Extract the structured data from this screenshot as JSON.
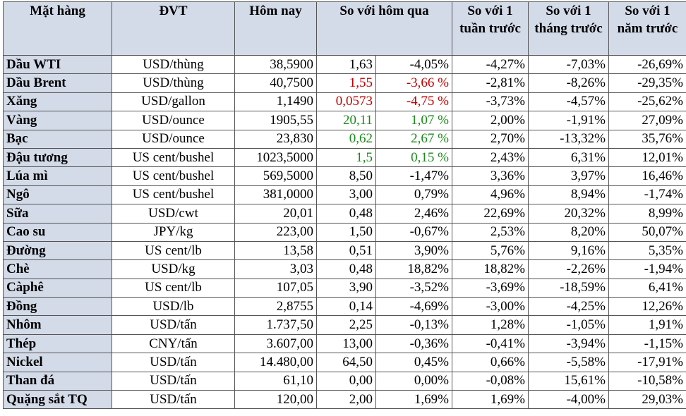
{
  "colors": {
    "header_bg": "#d3dae8",
    "up": "#1a8a1a",
    "down": "#c00000"
  },
  "headers": {
    "item": "Mặt hàng",
    "unit": "ĐVT",
    "today": "Hôm nay",
    "vs_yesterday": "So với hôm qua",
    "vs_week": "So với 1 tuần trước",
    "vs_month": "So với 1 tháng trước",
    "vs_year": "So với 1 năm trước"
  },
  "rows": [
    {
      "name": "Dầu WTI",
      "unit": "USD/thùng",
      "today": "38,5900",
      "chg": "1,63",
      "pct": "-4,05%",
      "week": "-4,27%",
      "month": "-7,03%",
      "year": "-26,69%",
      "color": ""
    },
    {
      "name": "Dầu Brent",
      "unit": "USD/thùng",
      "today": "40,7500",
      "chg": "1,55",
      "pct": "-3,66 %",
      "week": "-2,81%",
      "month": "-8,26%",
      "year": "-29,35%",
      "color": "red"
    },
    {
      "name": "Xăng",
      "unit": "USD/gallon",
      "today": "1,1490",
      "chg": "0,0573",
      "pct": "-4,75 %",
      "week": "-3,73%",
      "month": "-4,57%",
      "year": "-25,62%",
      "color": "red"
    },
    {
      "name": "Vàng",
      "unit": "USD/ounce",
      "today": "1905,55",
      "chg": "20,11",
      "pct": "1,07 %",
      "week": "2,00%",
      "month": "-1,91%",
      "year": "27,09%",
      "color": "green"
    },
    {
      "name": "Bạc",
      "unit": "USD/ounce",
      "today": "23,830",
      "chg": "0,62",
      "pct": "2,67 %",
      "week": "2,70%",
      "month": "-13,32%",
      "year": "35,76%",
      "color": "green"
    },
    {
      "name": "Đậu tương",
      "unit": "US cent/bushel",
      "today": "1023,5000",
      "chg": "1,5",
      "pct": "0,15 %",
      "week": "2,43%",
      "month": "6,31%",
      "year": "12,01%",
      "color": "green"
    },
    {
      "name": "Lúa mì",
      "unit": "US cent/bushel",
      "today": "569,5000",
      "chg": "8,50",
      "pct": "-1,47%",
      "week": "3,36%",
      "month": "3,97%",
      "year": "16,46%",
      "color": ""
    },
    {
      "name": "Ngô",
      "unit": "US cent/bushel",
      "today": "381,0000",
      "chg": "3,00",
      "pct": "0,79%",
      "week": "4,96%",
      "month": "8,94%",
      "year": "-1,74%",
      "color": ""
    },
    {
      "name": "Sữa",
      "unit": "USD/cwt",
      "today": "20,01",
      "chg": "0,48",
      "pct": "2,46%",
      "week": "22,69%",
      "month": "20,32%",
      "year": "8,99%",
      "color": ""
    },
    {
      "name": "Cao su",
      "unit": "JPY/kg",
      "today": "223,00",
      "chg": "1,50",
      "pct": "-0,67%",
      "week": "2,53%",
      "month": "8,20%",
      "year": "50,07%",
      "color": ""
    },
    {
      "name": "Đường",
      "unit": "US cent/lb",
      "today": "13,58",
      "chg": "0,51",
      "pct": "3,90%",
      "week": "5,76%",
      "month": "9,16%",
      "year": "5,35%",
      "color": ""
    },
    {
      "name": "Chè",
      "unit": "USD/kg",
      "today": "3,03",
      "chg": "0,48",
      "pct": "18,82%",
      "week": "18,82%",
      "month": "-2,26%",
      "year": "-1,94%",
      "color": ""
    },
    {
      "name": "Càphê",
      "unit": "US cent/lb",
      "today": "107,05",
      "chg": "3,90",
      "pct": "-3,52%",
      "week": "-3,69%",
      "month": "-18,59%",
      "year": "6,41%",
      "color": ""
    },
    {
      "name": "Đồng",
      "unit": "USD/lb",
      "today": "2,8755",
      "chg": "0,14",
      "pct": "-4,69%",
      "week": "-3,00%",
      "month": "-4,25%",
      "year": "12,26%",
      "color": ""
    },
    {
      "name": "Nhôm",
      "unit": "USD/tấn",
      "today": "1.737,50",
      "chg": "2,25",
      "pct": "-0,13%",
      "week": "1,28%",
      "month": "-1,05%",
      "year": "1,91%",
      "color": ""
    },
    {
      "name": "Thép",
      "unit": "CNY/tấn",
      "today": "3.607,00",
      "chg": "13,00",
      "pct": "-0,36%",
      "week": "-0,41%",
      "month": "-3,94%",
      "year": "-1,15%",
      "color": ""
    },
    {
      "name": "Nickel",
      "unit": "USD/tấn",
      "today": "14.480,00",
      "chg": "64,50",
      "pct": "0,45%",
      "week": "0,66%",
      "month": "-5,58%",
      "year": "-17,91%",
      "color": ""
    },
    {
      "name": "Than đá",
      "unit": "USD/tấn",
      "today": "61,10",
      "chg": "0,00",
      "pct": "0,00%",
      "week": "-0,08%",
      "month": "15,61%",
      "year": "-10,58%",
      "color": ""
    },
    {
      "name": "Quặng sắt TQ",
      "unit": "USD/tấn",
      "today": "120,00",
      "chg": "2,00",
      "pct": "1,69%",
      "week": "1,69%",
      "month": "-4,00%",
      "year": "29,03%",
      "color": ""
    }
  ]
}
